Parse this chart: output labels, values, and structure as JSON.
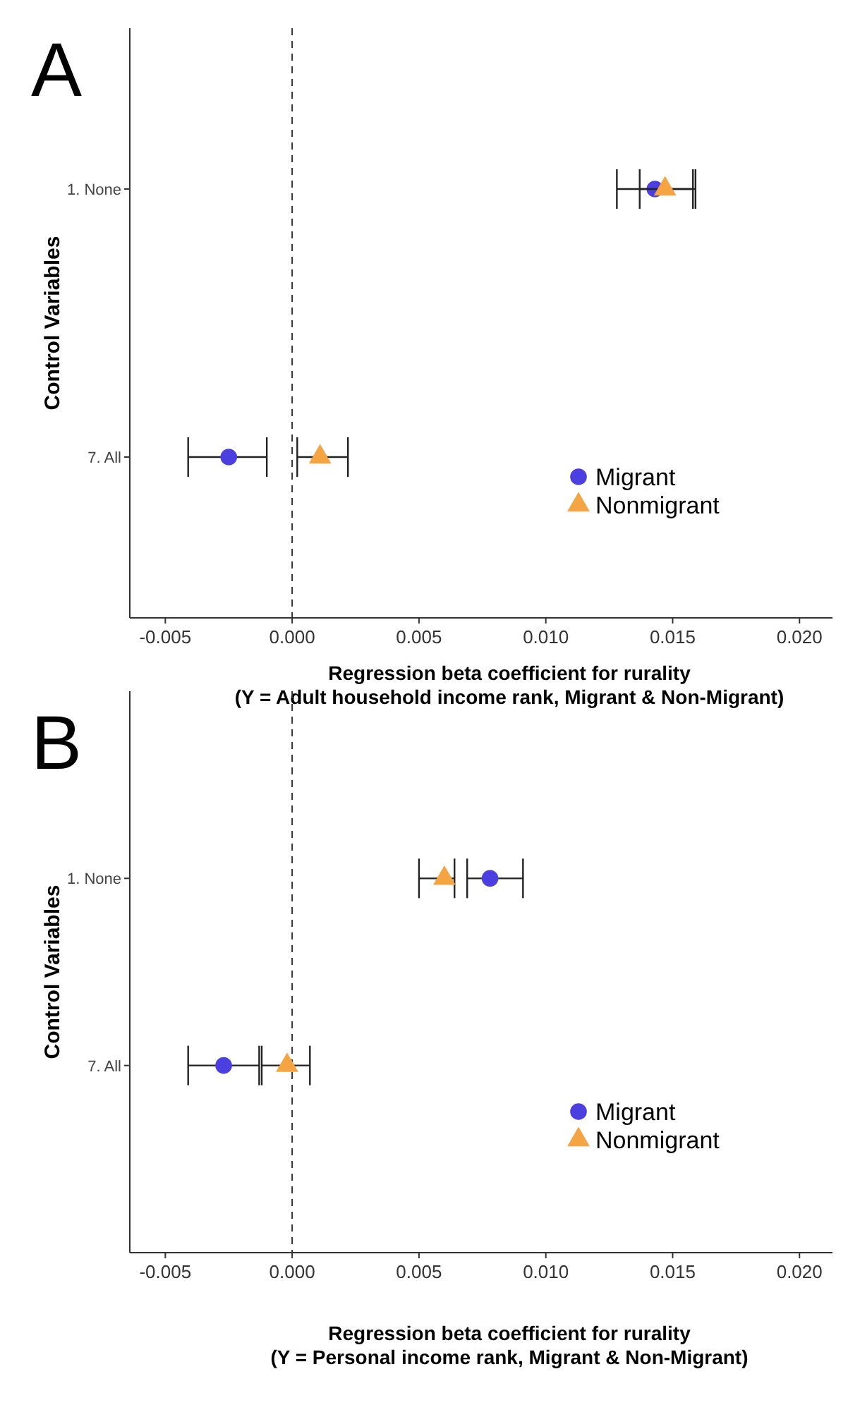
{
  "chart_data": [
    {
      "type": "scatter",
      "title": "A",
      "xlabel": "Regression beta coefficient for rurality\n(Y = Adult household income rank, Migrant & Non-Migrant)",
      "ylabel": "Control Variables",
      "orientation": "horizontal",
      "categories": [
        "1. None",
        "7. All"
      ],
      "xlim": [
        -0.0064,
        0.0213
      ],
      "xticks": [
        {
          "value": -0.005,
          "label": "-0.005"
        },
        {
          "value": 0,
          "label": "0.000"
        },
        {
          "value": 0.005,
          "label": "0.005"
        },
        {
          "value": 0.01,
          "label": "0.010"
        },
        {
          "value": 0.015,
          "label": "0.015"
        },
        {
          "value": 0.02,
          "label": "0.020"
        }
      ],
      "legend": "bottom right",
      "grid": false,
      "ref_lines": [
        {
          "axis": "x",
          "value": 0,
          "line_style": "dashed",
          "color": "#333333"
        }
      ],
      "series": [
        {
          "name": "Migrant",
          "color": "#4b3fe0",
          "marker": "circle",
          "values": [
            0.0143,
            -0.0025
          ],
          "errors": [
            [
              0.0128,
              0.0158
            ],
            [
              -0.0041,
              -0.001
            ]
          ]
        },
        {
          "name": "Nonmigrant",
          "color": "#f5a443",
          "marker": "triangle",
          "values": [
            0.0147,
            0.0011
          ],
          "errors": [
            [
              0.0137,
              0.0159
            ],
            [
              0.0002,
              0.0022
            ]
          ]
        }
      ]
    },
    {
      "type": "scatter",
      "title": "B",
      "xlabel": "Regression beta coefficient for rurality\n(Y = Personal income rank, Migrant & Non-Migrant)",
      "ylabel": "Control Variables",
      "orientation": "horizontal",
      "categories": [
        "1. None",
        "7. All"
      ],
      "xlim": [
        -0.0064,
        0.0213
      ],
      "xticks": [
        {
          "value": -0.005,
          "label": "-0.005"
        },
        {
          "value": 0,
          "label": "0.000"
        },
        {
          "value": 0.005,
          "label": "0.005"
        },
        {
          "value": 0.01,
          "label": "0.010"
        },
        {
          "value": 0.015,
          "label": "0.015"
        },
        {
          "value": 0.02,
          "label": "0.020"
        }
      ],
      "legend": "bottom right",
      "grid": false,
      "ref_lines": [
        {
          "axis": "x",
          "value": 0,
          "line_style": "dashed",
          "color": "#333333"
        }
      ],
      "series": [
        {
          "name": "Migrant",
          "color": "#4b3fe0",
          "marker": "circle",
          "values": [
            0.0078,
            -0.0027
          ],
          "errors": [
            [
              0.0069,
              0.0091
            ],
            [
              -0.0041,
              -0.0013
            ]
          ]
        },
        {
          "name": "Nonmigrant",
          "color": "#f5a443",
          "marker": "triangle",
          "values": [
            0.006,
            -0.0002
          ],
          "errors": [
            [
              0.005,
              0.0064
            ],
            [
              -0.0012,
              0.0007
            ]
          ]
        }
      ]
    }
  ]
}
